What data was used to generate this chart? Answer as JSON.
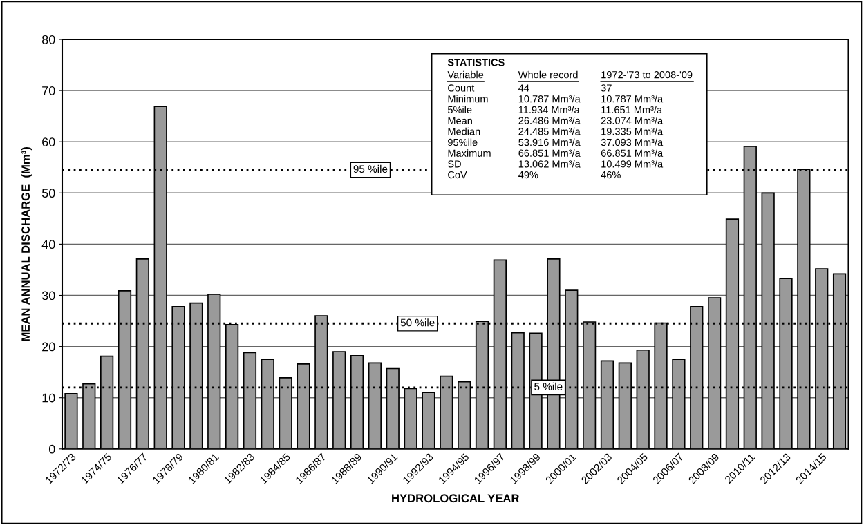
{
  "chart_data": {
    "type": "bar",
    "xlabel": "HYDROLOGICAL YEAR",
    "ylabel": "MEAN ANNUAL DISCHARGE  (Mm³)",
    "categories": [
      "1972/73",
      null,
      "1974/75",
      null,
      "1976/77",
      null,
      "1978/79",
      null,
      "1980/81",
      null,
      "1982/83",
      null,
      "1984/85",
      null,
      "1986/87",
      null,
      "1988/89",
      null,
      "1990/91",
      null,
      "1992/93",
      null,
      "1994/95",
      null,
      "1996/97",
      null,
      "1998/99",
      null,
      "2000/01",
      null,
      "2002/03",
      null,
      "2004/05",
      null,
      "2006/07",
      null,
      "2008/09",
      null,
      "2010/11",
      null,
      "2012/13",
      null,
      "2014/15",
      null
    ],
    "values": [
      10.8,
      12.7,
      18.1,
      30.9,
      37.1,
      66.9,
      27.8,
      28.5,
      30.2,
      24.3,
      18.8,
      17.5,
      13.9,
      16.6,
      26.0,
      19.0,
      18.2,
      16.8,
      15.7,
      11.8,
      11.0,
      14.2,
      13.1,
      24.9,
      36.9,
      22.7,
      22.6,
      37.1,
      31.0,
      24.8,
      17.2,
      16.8,
      19.3,
      24.6,
      17.5,
      27.8,
      29.5,
      44.9,
      59.1,
      50.0,
      33.3,
      54.6,
      35.2,
      34.2
    ],
    "color": "#9a9a9a",
    "ylim": [
      0,
      80
    ],
    "yticks": [
      0,
      10,
      20,
      30,
      40,
      50,
      60,
      70,
      80
    ],
    "grid": "y",
    "ref_lines": [
      {
        "axis": "y",
        "value": 54.5,
        "label": "95 %ile",
        "line_style": "dotted",
        "color": "#000000"
      },
      {
        "axis": "y",
        "value": 24.5,
        "label": "50 %ile",
        "line_style": "dotted",
        "color": "#000000"
      },
      {
        "axis": "y",
        "value": 12.0,
        "label": "5 %ile",
        "line_style": "dotted",
        "color": "#000000"
      }
    ],
    "annotations": [
      "STATISTICS",
      "Variable",
      "Whole record",
      "1972-'73 to 2008-'09",
      "Count",
      "44",
      "37",
      "Minimum",
      "10.787 Mm³/a",
      "10.787 Mm³/a",
      "5%ile",
      "11.934 Mm³/a",
      "11.651 Mm³/a",
      "Mean",
      "26.486 Mm³/a",
      "23.074 Mm³/a",
      "Median",
      "24.485 Mm³/a",
      "19.335 Mm³/a",
      "95%ile",
      "53.916 Mm³/a",
      "37.093 Mm³/a",
      "Maximum",
      "66.851 Mm³/a",
      "66.851 Mm³/a",
      "SD",
      "13.062 Mm³/a",
      "10.499 Mm³/a",
      "CoV",
      "49%",
      "46%"
    ]
  }
}
